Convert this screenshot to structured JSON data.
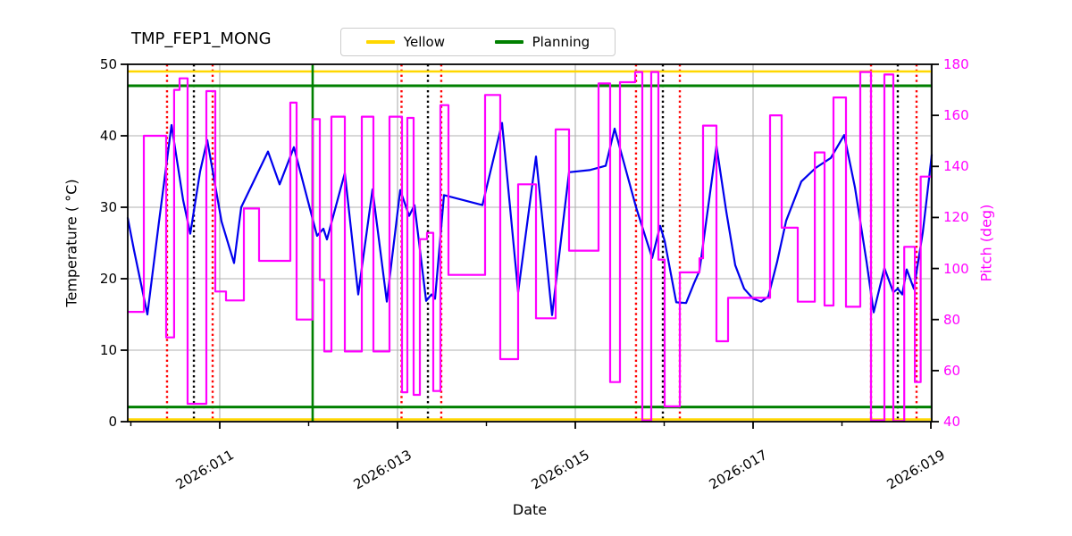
{
  "title": "TMP_FEP1_MONG",
  "legend": {
    "items": [
      {
        "label": "Yellow",
        "color": "#ffd700"
      },
      {
        "label": "Planning",
        "color": "#008000"
      }
    ]
  },
  "chart_data": {
    "type": "line",
    "title": "TMP_FEP1_MONG",
    "xlabel": "Date",
    "ylabel_left": "Temperature ( °C)",
    "ylabel_right": "Pitch (deg)",
    "xlim": [
      9.965,
      19.01
    ],
    "ylim_left": [
      0,
      50
    ],
    "ylim_right": [
      40,
      180
    ],
    "grid": true,
    "legend_position": "upper center, outside axes",
    "xticks": [
      {
        "value": 11,
        "label": "2026:011"
      },
      {
        "value": 13,
        "label": "2026:013"
      },
      {
        "value": 15,
        "label": "2026:015"
      },
      {
        "value": 17,
        "label": "2026:017"
      },
      {
        "value": 19,
        "label": "2026:019"
      }
    ],
    "xticks_minor": [
      10,
      12,
      14,
      16,
      18
    ],
    "yticks_left": [
      0,
      10,
      20,
      30,
      40,
      50
    ],
    "yticks_right": [
      40,
      60,
      80,
      100,
      120,
      140,
      160,
      180
    ],
    "colors": {
      "temperature": "#0000ee",
      "pitch": "#ff00ff",
      "yellow_limit": "#ffd700",
      "planning_limit": "#008000",
      "red_event": "#ff0000",
      "black_event": "#000000",
      "grid": "#b0b0b0"
    },
    "series": [
      {
        "name": "Temperature",
        "axis": "left",
        "color": "#0000ee",
        "style": "solid",
        "points": [
          [
            9.965,
            28.5
          ],
          [
            10.035,
            24
          ],
          [
            10.186,
            15
          ],
          [
            10.317,
            28
          ],
          [
            10.457,
            41.5
          ],
          [
            10.588,
            31
          ],
          [
            10.668,
            26.3
          ],
          [
            10.779,
            35
          ],
          [
            10.859,
            39.4
          ],
          [
            11.02,
            28
          ],
          [
            11.161,
            22.2
          ],
          [
            11.241,
            30
          ],
          [
            11.543,
            37.8
          ],
          [
            11.673,
            33.2
          ],
          [
            11.834,
            38.4
          ],
          [
            12.095,
            26
          ],
          [
            12.166,
            27
          ],
          [
            12.206,
            25.5
          ],
          [
            12.407,
            34.8
          ],
          [
            12.558,
            17.8
          ],
          [
            12.719,
            32.5
          ],
          [
            12.879,
            16.8
          ],
          [
            13.03,
            32.4
          ],
          [
            13.131,
            28.8
          ],
          [
            13.191,
            30.3
          ],
          [
            13.322,
            16.9
          ],
          [
            13.382,
            17.8
          ],
          [
            13.422,
            17.2
          ],
          [
            13.523,
            31.7
          ],
          [
            13.955,
            30.3
          ],
          [
            14.176,
            41.8
          ],
          [
            14.357,
            18.1
          ],
          [
            14.558,
            37.1
          ],
          [
            14.739,
            14.9
          ],
          [
            14.93,
            34.9
          ],
          [
            15.161,
            35.2
          ],
          [
            15.342,
            35.8
          ],
          [
            15.442,
            41
          ],
          [
            15.683,
            30
          ],
          [
            15.864,
            22.9
          ],
          [
            15.955,
            27.4
          ],
          [
            16.005,
            25.3
          ],
          [
            16.136,
            16.7
          ],
          [
            16.246,
            16.6
          ],
          [
            16.337,
            19.4
          ],
          [
            16.397,
            21.1
          ],
          [
            16.497,
            30.3
          ],
          [
            16.588,
            38.6
          ],
          [
            16.698,
            29.4
          ],
          [
            16.799,
            21.9
          ],
          [
            16.899,
            18.6
          ],
          [
            17.0,
            17.2
          ],
          [
            17.09,
            16.8
          ],
          [
            17.171,
            17.5
          ],
          [
            17.271,
            22.4
          ],
          [
            17.372,
            28.1
          ],
          [
            17.543,
            33.6
          ],
          [
            17.704,
            35.5
          ],
          [
            17.874,
            36.9
          ],
          [
            18.025,
            40.1
          ],
          [
            18.146,
            32.8
          ],
          [
            18.276,
            22.4
          ],
          [
            18.357,
            15.3
          ],
          [
            18.477,
            21.5
          ],
          [
            18.578,
            18.1
          ],
          [
            18.628,
            18.6
          ],
          [
            18.678,
            17.8
          ],
          [
            18.729,
            21.3
          ],
          [
            18.809,
            18.6
          ],
          [
            18.91,
            26.5
          ],
          [
            19.01,
            37.3
          ]
        ]
      },
      {
        "name": "Pitch",
        "axis": "right",
        "color": "#ff00ff",
        "style": "step-after",
        "points": [
          [
            9.965,
            83
          ],
          [
            10.146,
            152
          ],
          [
            10.397,
            73
          ],
          [
            10.487,
            170
          ],
          [
            10.548,
            174.5
          ],
          [
            10.638,
            47
          ],
          [
            10.849,
            169.5
          ],
          [
            10.95,
            91
          ],
          [
            11.07,
            87.5
          ],
          [
            11.271,
            123.5
          ],
          [
            11.442,
            103
          ],
          [
            11.794,
            165
          ],
          [
            11.864,
            80
          ],
          [
            12.045,
            158.5
          ],
          [
            12.126,
            95.5
          ],
          [
            12.176,
            67.5
          ],
          [
            12.256,
            159.5
          ],
          [
            12.407,
            67.5
          ],
          [
            12.598,
            159.5
          ],
          [
            12.729,
            67.5
          ],
          [
            12.91,
            159.5
          ],
          [
            13.05,
            51.5
          ],
          [
            13.111,
            159
          ],
          [
            13.181,
            50.5
          ],
          [
            13.251,
            111.5
          ],
          [
            13.332,
            114
          ],
          [
            13.402,
            52
          ],
          [
            13.482,
            164
          ],
          [
            13.573,
            97.5
          ],
          [
            13.985,
            168
          ],
          [
            14.156,
            64.5
          ],
          [
            14.357,
            133
          ],
          [
            14.558,
            80.5
          ],
          [
            14.779,
            154.5
          ],
          [
            14.93,
            107
          ],
          [
            15.261,
            172.5
          ],
          [
            15.392,
            55.5
          ],
          [
            15.503,
            173
          ],
          [
            15.673,
            177
          ],
          [
            15.754,
            40.5
          ],
          [
            15.854,
            177
          ],
          [
            15.935,
            103.5
          ],
          [
            16.005,
            46
          ],
          [
            16.176,
            98.5
          ],
          [
            16.397,
            104
          ],
          [
            16.437,
            156
          ],
          [
            16.588,
            71.5
          ],
          [
            16.719,
            88.5
          ],
          [
            17.191,
            160
          ],
          [
            17.322,
            116
          ],
          [
            17.503,
            87
          ],
          [
            17.694,
            145.5
          ],
          [
            17.804,
            85.5
          ],
          [
            17.905,
            167
          ],
          [
            18.045,
            85
          ],
          [
            18.206,
            177
          ],
          [
            18.327,
            40.5
          ],
          [
            18.477,
            176
          ],
          [
            18.578,
            40.2
          ],
          [
            18.7,
            108.5
          ],
          [
            18.82,
            55.5
          ],
          [
            18.885,
            136
          ]
        ]
      }
    ],
    "limit_lines": {
      "yellow": {
        "label": "Yellow",
        "color": "#ffd700",
        "values_left_axis": [
          49,
          0.3
        ]
      },
      "planning": {
        "label": "Planning",
        "color": "#008000",
        "values_left_axis": [
          47,
          2.05
        ],
        "vline_day": 12.045
      }
    },
    "event_vlines": {
      "red_dotted": [
        10.407,
        10.92,
        13.045,
        13.492,
        15.683,
        16.176,
        18.327,
        18.839
      ],
      "black_dotted": [
        10.709,
        13.342,
        15.985,
        18.628
      ]
    }
  }
}
